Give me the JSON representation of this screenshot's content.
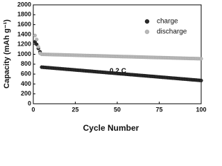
{
  "chart_data": {
    "type": "scatter",
    "x_label": "Cycle Number",
    "y_label": "Capacity (mAh g⁻¹)",
    "annotation": "0.2 C",
    "legend": "upper right",
    "xlim": [
      0,
      100
    ],
    "xticks": [
      0,
      25,
      50,
      75,
      100
    ],
    "ylim": [
      0,
      2000
    ],
    "yticks": [
      0,
      200,
      400,
      600,
      800,
      1000,
      1200,
      1400,
      1600,
      1800,
      2000
    ],
    "x": [
      1,
      2,
      3,
      4,
      5,
      6,
      7,
      8,
      9,
      10,
      11,
      12,
      13,
      14,
      15,
      16,
      17,
      18,
      19,
      20,
      21,
      22,
      23,
      24,
      25,
      26,
      27,
      28,
      29,
      30,
      31,
      32,
      33,
      34,
      35,
      36,
      37,
      38,
      39,
      40,
      41,
      42,
      43,
      44,
      45,
      46,
      47,
      48,
      49,
      50,
      51,
      52,
      53,
      54,
      55,
      56,
      57,
      58,
      59,
      60,
      61,
      62,
      63,
      64,
      65,
      66,
      67,
      68,
      69,
      70,
      71,
      72,
      73,
      74,
      75,
      76,
      77,
      78,
      79,
      80,
      81,
      82,
      83,
      84,
      85,
      86,
      87,
      88,
      89,
      90,
      91,
      92,
      93,
      94,
      95,
      96,
      97,
      98,
      99,
      100
    ],
    "series": [
      {
        "name": "charge",
        "color": "#2b2b2b",
        "values": [
          1250,
          1200,
          1120,
          1050,
          740,
          737,
          734,
          731,
          729,
          726,
          723,
          720,
          717,
          714,
          712,
          709,
          706,
          703,
          700,
          697,
          695,
          692,
          689,
          686,
          683,
          680,
          677,
          675,
          672,
          669,
          666,
          663,
          660,
          658,
          655,
          652,
          649,
          646,
          643,
          641,
          638,
          635,
          632,
          629,
          626,
          624,
          621,
          618,
          615,
          612,
          609,
          606,
          604,
          601,
          598,
          595,
          592,
          589,
          587,
          584,
          581,
          578,
          575,
          572,
          570,
          567,
          564,
          561,
          558,
          555,
          553,
          550,
          547,
          544,
          541,
          538,
          535,
          533,
          530,
          527,
          524,
          521,
          518,
          516,
          513,
          510,
          507,
          504,
          501,
          499,
          496,
          493,
          490,
          487,
          484,
          482,
          479,
          476,
          473,
          470
        ]
      },
      {
        "name": "discharge",
        "color": "#b8b8b8",
        "values": [
          1380,
          1300,
          1150,
          1020,
          1000,
          999,
          998,
          997,
          996,
          995,
          994,
          993,
          992,
          991,
          991,
          990,
          989,
          988,
          987,
          986,
          985,
          984,
          983,
          982,
          981,
          980,
          979,
          978,
          977,
          976,
          975,
          974,
          973,
          972,
          972,
          971,
          970,
          969,
          968,
          967,
          966,
          965,
          964,
          963,
          962,
          961,
          960,
          959,
          958,
          957,
          956,
          955,
          954,
          953,
          953,
          952,
          951,
          950,
          949,
          948,
          947,
          946,
          945,
          944,
          943,
          942,
          941,
          940,
          939,
          938,
          937,
          936,
          935,
          934,
          934,
          933,
          932,
          931,
          930,
          929,
          928,
          927,
          926,
          925,
          924,
          923,
          922,
          921,
          920,
          919,
          918,
          917,
          916,
          915,
          915,
          914,
          913,
          912,
          911,
          910
        ]
      }
    ]
  }
}
